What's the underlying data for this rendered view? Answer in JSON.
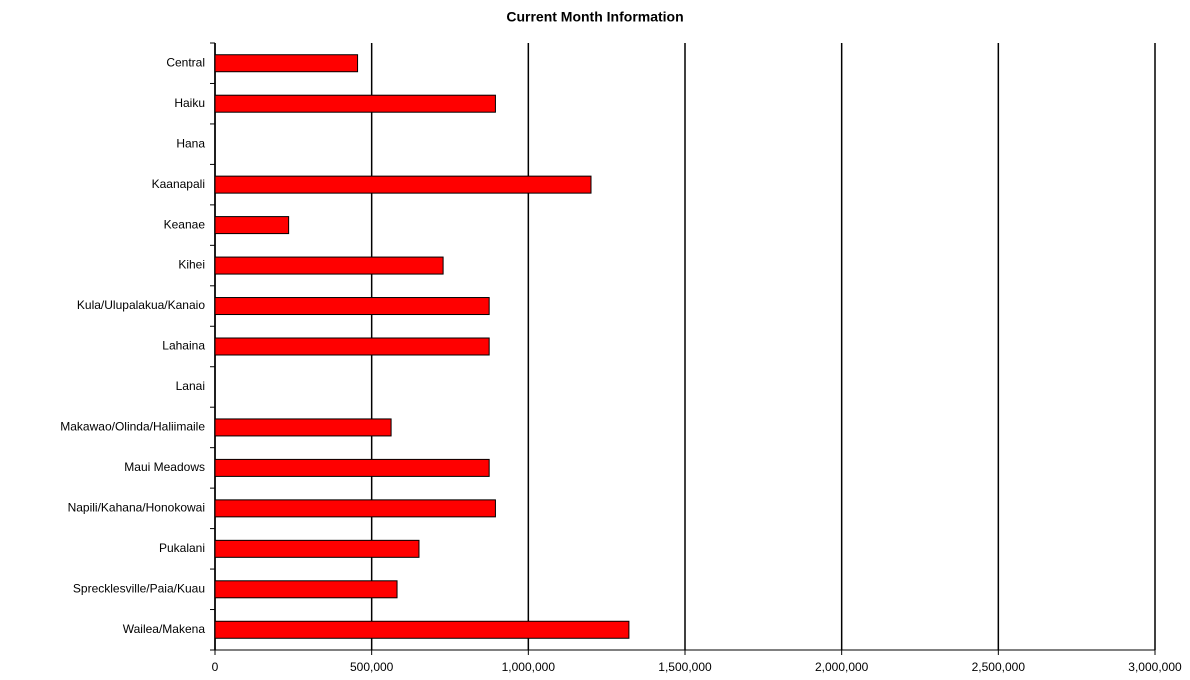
{
  "chart_data": {
    "type": "hbar",
    "title": "Current Month Information",
    "categories": [
      "Central",
      "Haiku",
      "Hana",
      "Kaanapali",
      "Keanae",
      "Kihei",
      "Kula/Ulupalakua/Kanaio",
      "Lahaina",
      "Lanai",
      "Makawao/Olinda/Haliimaile",
      "Maui Meadows",
      "Napili/Kahana/Honokowai",
      "Pukalani",
      "Sprecklesville/Paia/Kuau",
      "Wailea/Makena"
    ],
    "values": [
      455000,
      895000,
      0,
      1200000,
      235000,
      728000,
      875000,
      875000,
      0,
      562000,
      875000,
      895000,
      651000,
      581000,
      1321000
    ],
    "color": "#ff0000",
    "xlim": [
      0,
      3000000
    ],
    "xticks": [
      0,
      {
        "value": 500000,
        "label": "500,000"
      },
      {
        "value": 1000000,
        "label": "1,000,000"
      },
      {
        "value": 1500000,
        "label": "1,500,000"
      },
      {
        "value": 2000000,
        "label": "2,000,000"
      },
      {
        "value": 2500000,
        "label": "2,500,000"
      },
      {
        "value": 3000000,
        "label": "3,000,000"
      }
    ],
    "grid": true
  }
}
